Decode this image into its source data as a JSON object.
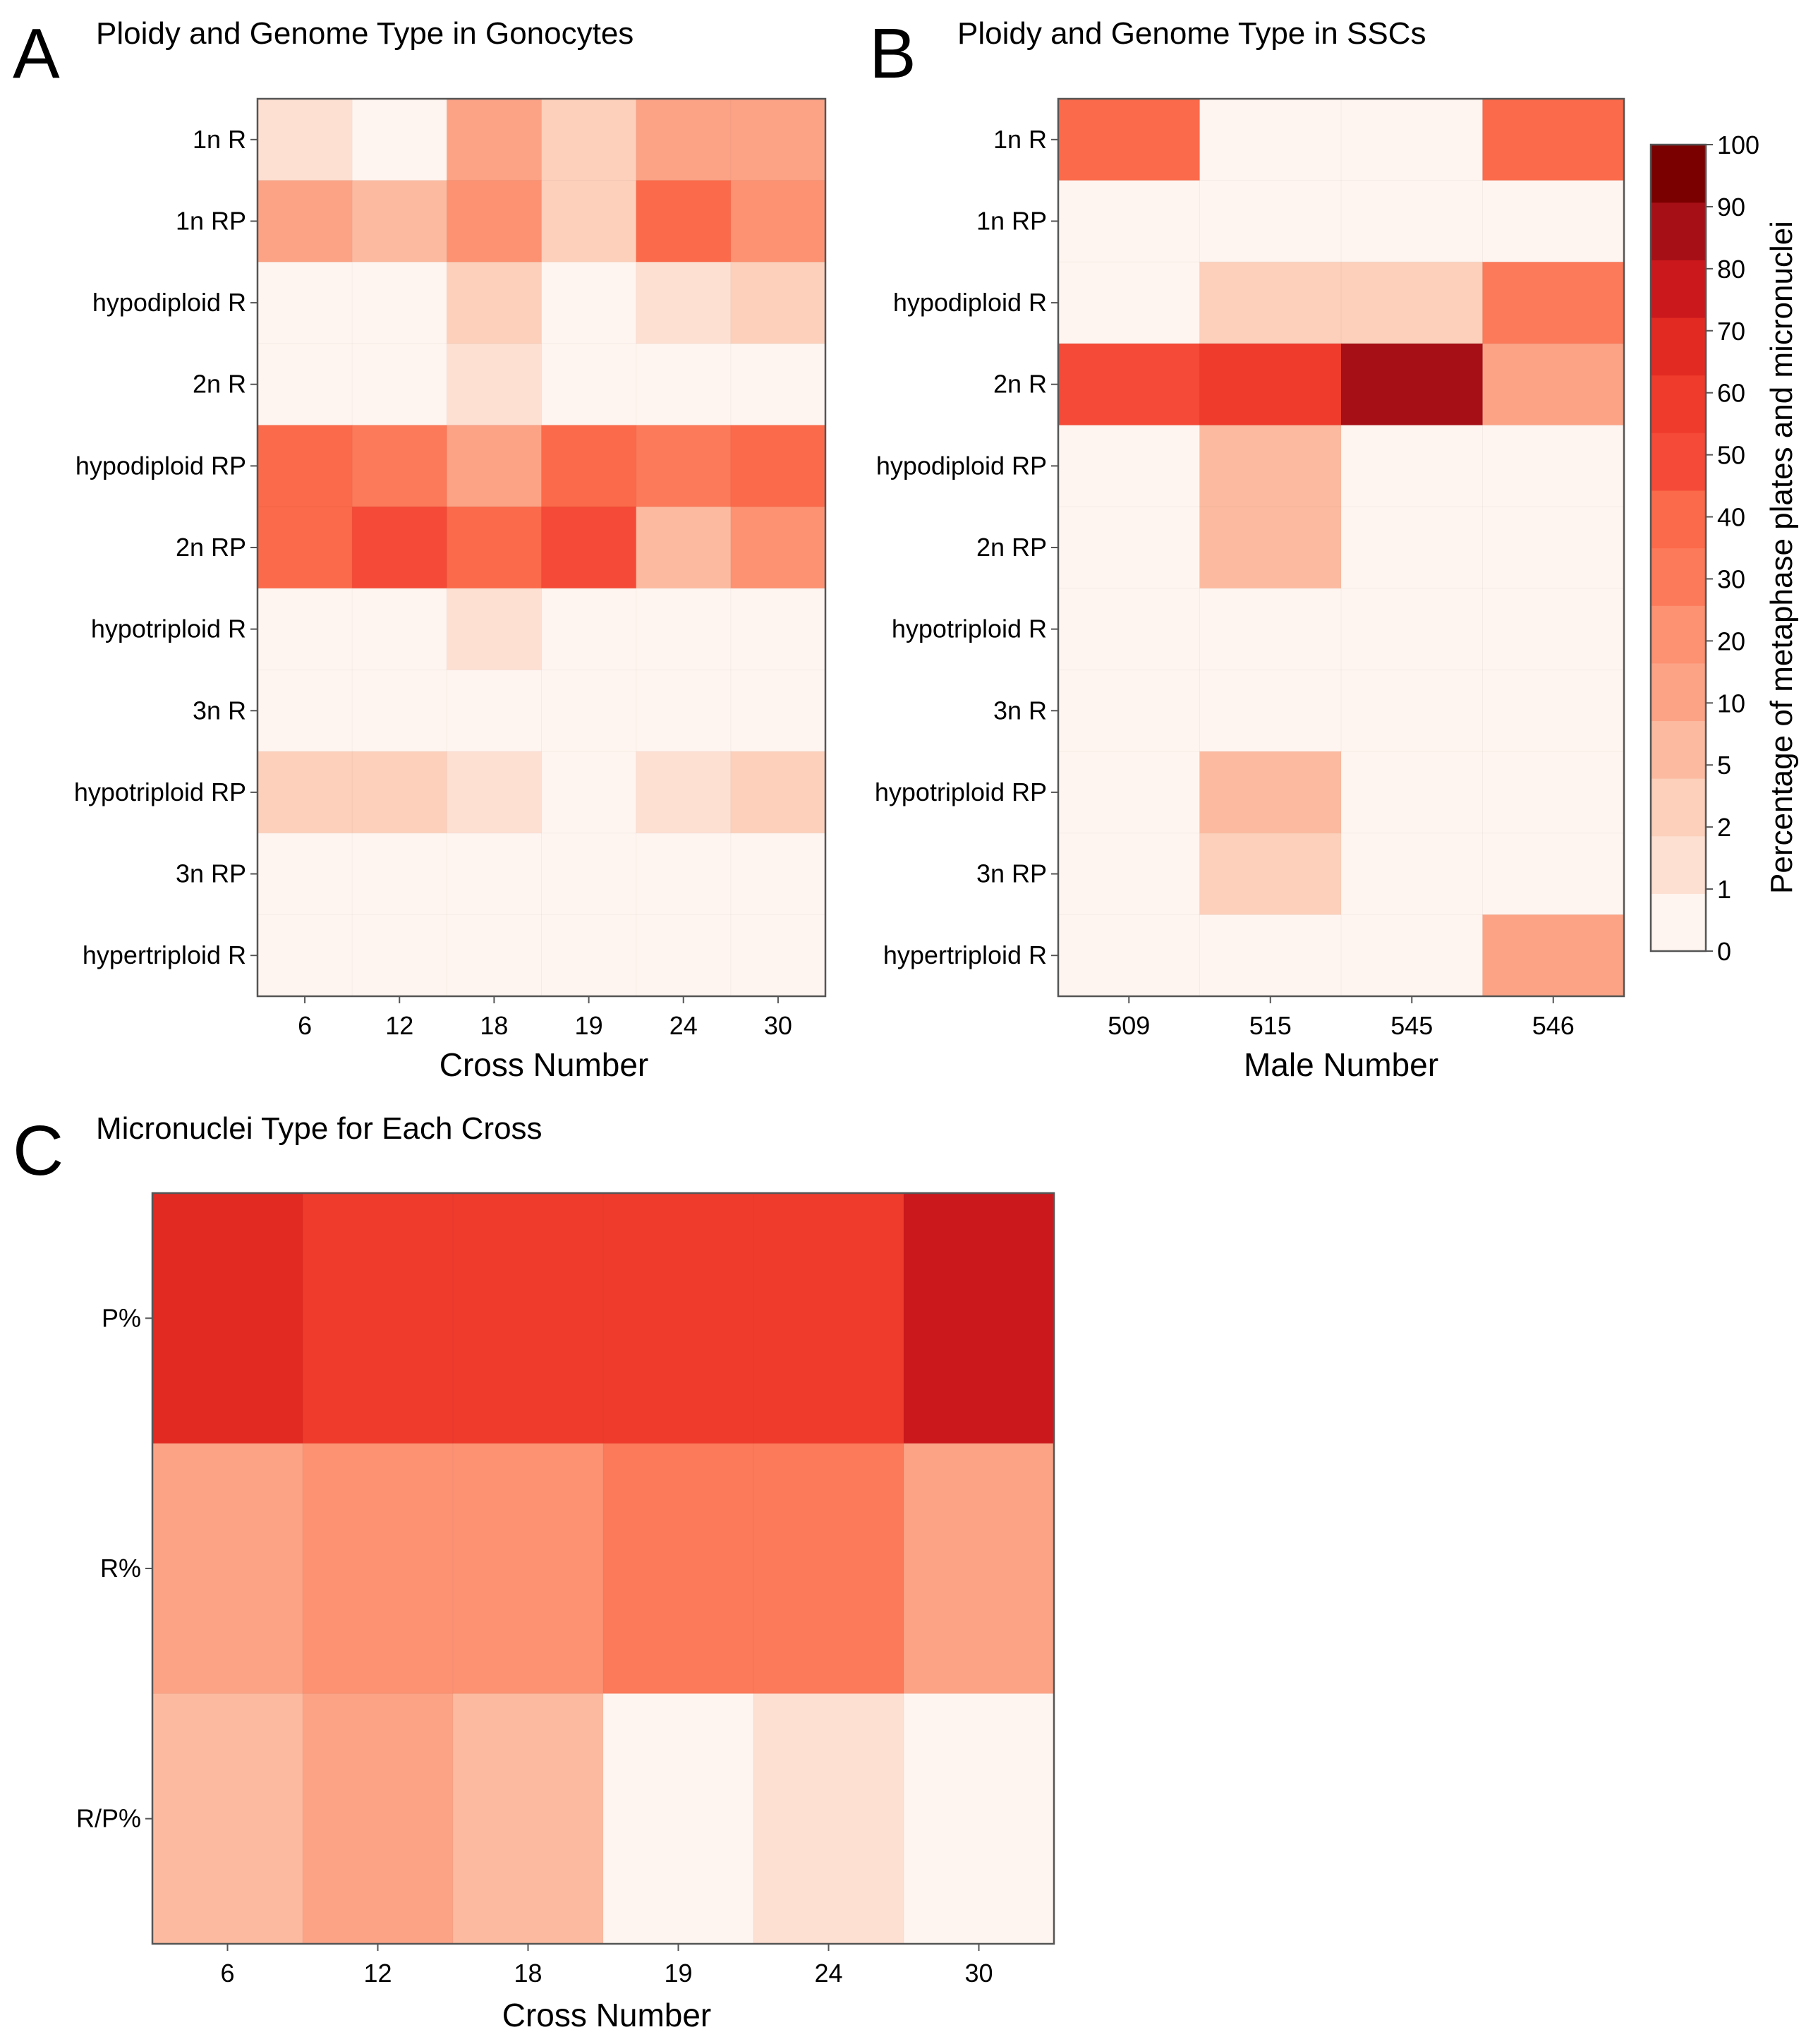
{
  "colorbar": {
    "label": "Percentage of metaphase plates and micronuclei",
    "ticks": [
      "0",
      "1",
      "2",
      "5",
      "10",
      "20",
      "30",
      "40",
      "50",
      "60",
      "70",
      "80",
      "90",
      "100"
    ],
    "colors": [
      "#fff5f0",
      "#fee0d2",
      "#fcd0bb",
      "#fcbba1",
      "#fca386",
      "#fc9272",
      "#fc7959",
      "#fb6a4a",
      "#f44a37",
      "#ef3b2c",
      "#e32a22",
      "#cb181d",
      "#a50f15",
      "#7a0000"
    ]
  },
  "panels": [
    {
      "letter": "A",
      "title": "Ploidy and Genome Type in Gonocytes",
      "xlabel": "Cross Number",
      "chart_data": {
        "type": "heatmap",
        "title": "Ploidy and Genome Type in Gonocytes",
        "xlabel": "Cross Number",
        "ylabel": "",
        "x": [
          "6",
          "12",
          "18",
          "19",
          "24",
          "30"
        ],
        "y": [
          "1n R",
          "1n RP",
          "hypodiploid R",
          "2n R",
          "hypodiploid RP",
          "2n RP",
          "hypotriploid R",
          "3n R",
          "hypotriploid RP",
          "3n RP",
          "hypertriploid R"
        ],
        "bins": [
          0,
          1,
          2,
          5,
          10,
          20,
          30,
          40,
          50,
          60,
          70,
          80,
          90,
          100
        ],
        "values": [
          [
            1.5,
            0.5,
            15,
            4,
            18,
            18
          ],
          [
            15,
            8,
            25,
            4,
            45,
            25
          ],
          [
            0.5,
            0.5,
            4,
            0.3,
            1.5,
            4
          ],
          [
            0.5,
            0.5,
            1.5,
            0.5,
            0.5,
            0.3
          ],
          [
            45,
            35,
            15,
            45,
            35,
            40
          ],
          [
            45,
            55,
            45,
            55,
            8,
            25
          ],
          [
            0.5,
            0.5,
            1.5,
            0.5,
            0.5,
            0.5
          ],
          [
            0.5,
            0.5,
            0.5,
            0.5,
            0.5,
            0.5
          ],
          [
            4,
            4,
            1.5,
            0.5,
            1.5,
            4
          ],
          [
            0.5,
            0.5,
            0.5,
            0.5,
            0.5,
            0.5
          ],
          [
            0.5,
            0.5,
            0.5,
            0.5,
            0.5,
            0.5
          ]
        ]
      }
    },
    {
      "letter": "B",
      "title": "Ploidy and Genome Type in SSCs",
      "xlabel": "Male Number",
      "chart_data": {
        "type": "heatmap",
        "title": "Ploidy and Genome Type in SSCs",
        "xlabel": "Male Number",
        "ylabel": "",
        "x": [
          "509",
          "515",
          "545",
          "546"
        ],
        "y": [
          "1n R",
          "1n RP",
          "hypodiploid R",
          "2n R",
          "hypodiploid RP",
          "2n RP",
          "hypotriploid R",
          "3n R",
          "hypotriploid RP",
          "3n RP",
          "hypertriploid R"
        ],
        "bins": [
          0,
          1,
          2,
          5,
          10,
          20,
          30,
          40,
          50,
          60,
          70,
          80,
          90,
          100
        ],
        "values": [
          [
            45,
            0.5,
            0.5,
            45
          ],
          [
            0.5,
            0.5,
            0.5,
            0.5
          ],
          [
            0.5,
            4,
            4,
            35
          ],
          [
            55,
            65,
            95,
            15
          ],
          [
            0.5,
            8,
            0.5,
            0.5
          ],
          [
            0.5,
            8,
            0.5,
            0.5
          ],
          [
            0.5,
            0.5,
            0.5,
            0.5
          ],
          [
            0.5,
            0.5,
            0.5,
            0.5
          ],
          [
            0.5,
            8,
            0.5,
            0.5
          ],
          [
            0.5,
            4,
            0.5,
            0.5
          ],
          [
            0.5,
            0.5,
            0.5,
            15
          ]
        ]
      }
    },
    {
      "letter": "C",
      "title": "Micronuclei Type for Each Cross",
      "xlabel": "Cross Number",
      "chart_data": {
        "type": "heatmap",
        "title": "Micronuclei Type for Each Cross",
        "xlabel": "Cross Number",
        "ylabel": "",
        "x": [
          "6",
          "12",
          "18",
          "19",
          "24",
          "30"
        ],
        "y": [
          "P%",
          "R%",
          "R/P%"
        ],
        "bins": [
          0,
          1,
          2,
          5,
          10,
          20,
          30,
          40,
          50,
          60,
          70,
          80,
          90,
          100
        ],
        "values": [
          [
            75,
            65,
            65,
            65,
            65,
            85
          ],
          [
            15,
            25,
            25,
            35,
            35,
            15
          ],
          [
            8,
            15,
            8,
            0.5,
            1.5,
            0.5
          ]
        ]
      }
    }
  ]
}
